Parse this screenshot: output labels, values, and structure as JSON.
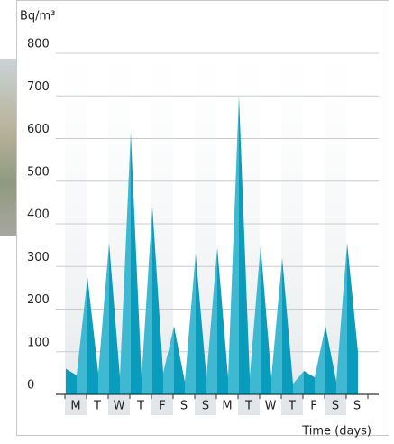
{
  "chart_data": {
    "type": "area",
    "y_label": "Bq/m³",
    "x_label": "Time (days)",
    "categories": [
      "M",
      "T",
      "W",
      "T",
      "F",
      "S",
      "S",
      "M",
      "T",
      "W",
      "T",
      "F",
      "S",
      "S"
    ],
    "x": [
      0,
      0.5,
      1,
      1.5,
      2,
      2.5,
      3,
      3.5,
      4,
      4.5,
      5,
      5.5,
      6,
      6.5,
      7,
      7.5,
      8,
      8.5,
      9,
      9.5,
      10,
      10.5,
      11,
      11.5,
      12,
      12.5,
      13,
      13.5
    ],
    "values": [
      60,
      45,
      275,
      50,
      355,
      40,
      615,
      40,
      440,
      50,
      160,
      30,
      330,
      40,
      345,
      40,
      700,
      40,
      350,
      40,
      320,
      25,
      55,
      40,
      160,
      30,
      355,
      100
    ],
    "colors": [
      "#3fb8d2",
      "#0a9cbd"
    ],
    "ylim": [
      0,
      800
    ],
    "yticks": [
      0,
      100,
      200,
      300,
      400,
      500,
      600,
      700,
      800
    ],
    "grid": true
  }
}
